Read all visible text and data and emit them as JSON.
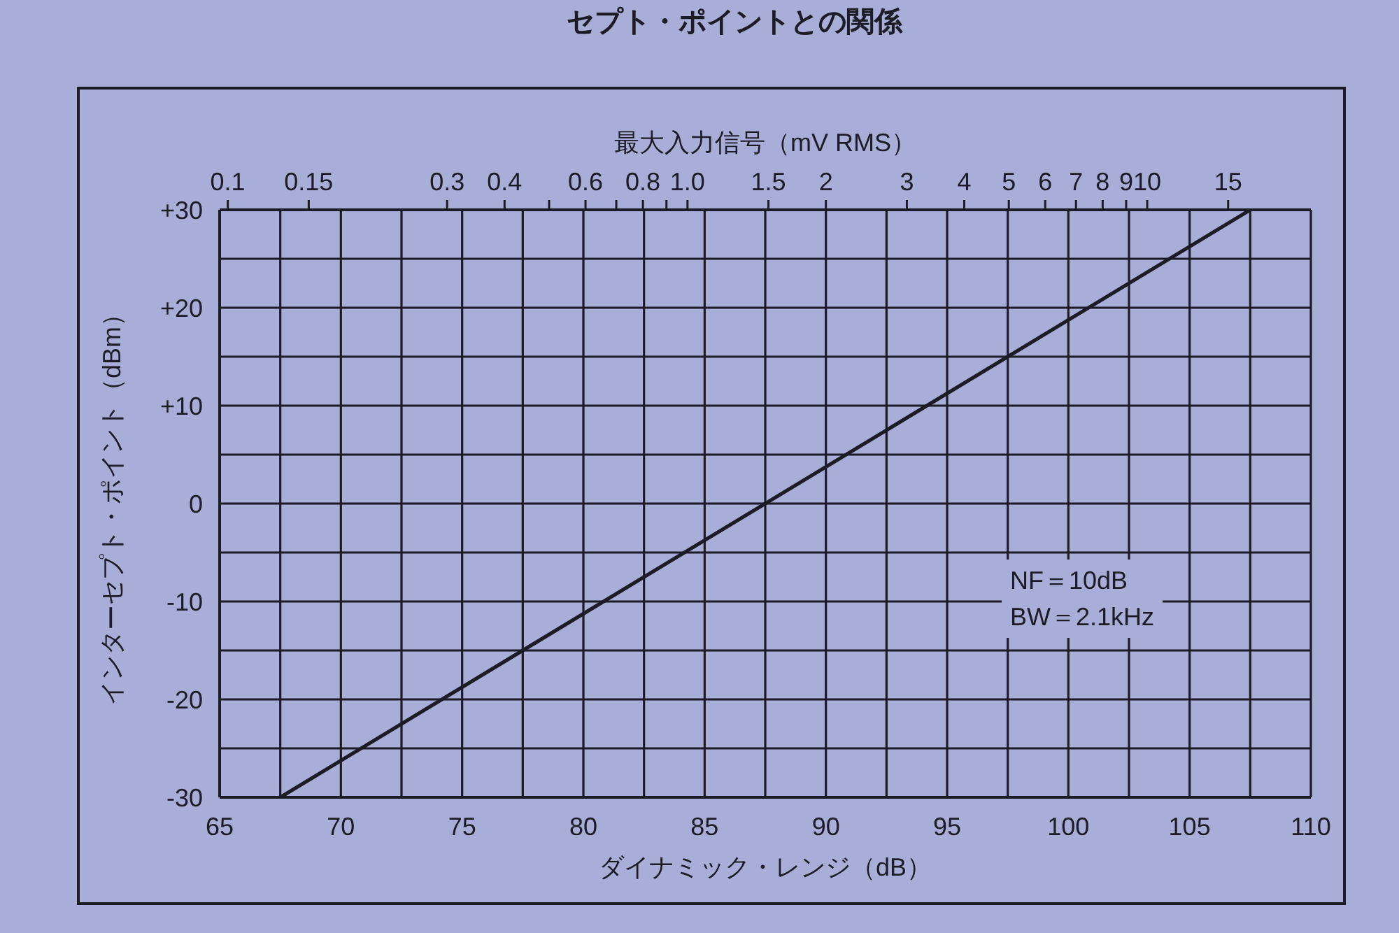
{
  "chart_data": {
    "type": "line",
    "title": "セプト・ポイントとの関係",
    "xlabel": "ダイナミック・レンジ（dB）",
    "ylabel": "インターセプト・ポイント（dBm）",
    "x2label": "最大入力信号（mV RMS）",
    "annotations": [
      "NF＝10dB",
      "BW＝2.1kHz"
    ],
    "x": [
      67.5,
      107.5
    ],
    "series": [
      {
        "color": "#1c1c26",
        "values": [
          -30,
          30
        ]
      }
    ],
    "xlim": [
      65,
      110
    ],
    "xticks": [
      65,
      {
        "value": 67.5,
        "label": null
      },
      70,
      {
        "value": 72.5,
        "label": null
      },
      75,
      {
        "value": 77.5,
        "label": null
      },
      80,
      {
        "value": 82.5,
        "label": null
      },
      85,
      {
        "value": 87.5,
        "label": null
      },
      90,
      {
        "value": 92.5,
        "label": null
      },
      95,
      {
        "value": 97.5,
        "label": null
      },
      100,
      {
        "value": 102.5,
        "label": null
      },
      105,
      {
        "value": 107.5,
        "label": null
      },
      110
    ],
    "ylim": [
      -30,
      30
    ],
    "yticks": [
      -30,
      {
        "value": -25,
        "label": null
      },
      -20,
      {
        "value": -15,
        "label": null
      },
      -10,
      {
        "value": -5,
        "label": null
      },
      0,
      {
        "value": 5,
        "label": null
      },
      {
        "value": 10,
        "label": "+10"
      },
      {
        "value": 15,
        "label": null
      },
      {
        "value": 20,
        "label": "+20"
      },
      {
        "value": 25,
        "label": null
      },
      {
        "value": 30,
        "label": "+30"
      }
    ],
    "x2lim": [
      0.096,
      22.7
    ],
    "x2ticks": [
      0.1,
      0.15,
      0.3,
      0.4,
      {
        "value": 0.5,
        "label": null
      },
      0.6,
      {
        "value": 0.7,
        "label": null
      },
      0.8,
      {
        "value": 0.9,
        "label": null
      },
      {
        "value": 1,
        "label": "1.0"
      },
      1.5,
      2,
      3,
      4,
      5,
      6,
      7,
      8,
      9,
      10,
      15
    ],
    "log": "x2",
    "grid": true,
    "marker": "none",
    "line_style": "solid"
  }
}
